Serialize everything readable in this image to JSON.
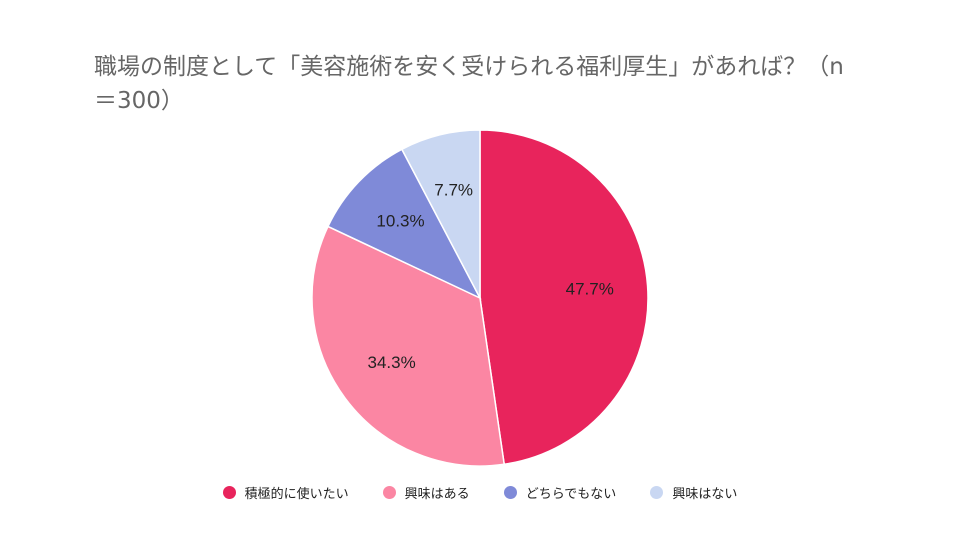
{
  "chart_data": {
    "type": "pie",
    "title": "職場の制度として「美容施術を安く受けられる福利厚生」があれば？（n＝300）",
    "categories": [
      "積極的に使いたい",
      "興味はある",
      "どちらでもない",
      "興味はない"
    ],
    "values": [
      47.7,
      34.3,
      10.3,
      7.7
    ],
    "labels": [
      "47.7%",
      "34.3%",
      "10.3%",
      "7.7%"
    ],
    "colors": [
      "#e8245c",
      "#fb86a3",
      "#7f8ad8",
      "#c9d7f2"
    ],
    "legend_position": "bottom"
  }
}
